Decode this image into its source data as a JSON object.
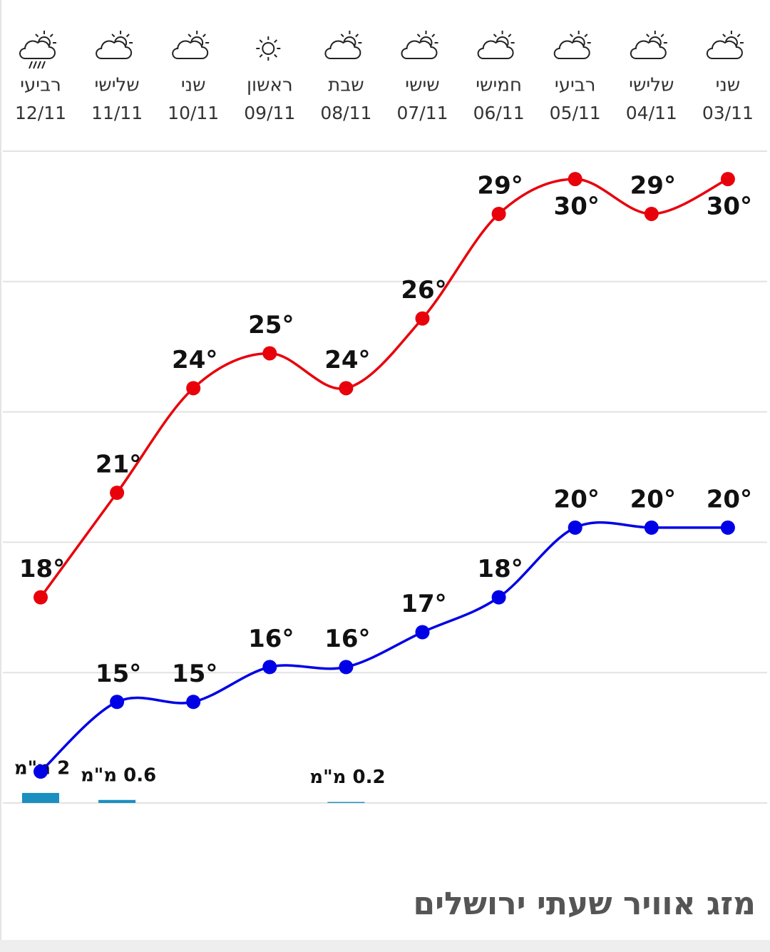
{
  "chart_data": {
    "type": "line",
    "title": "מזג אוויר שעתי ירושלים",
    "categories": [
      "12/11",
      "11/11",
      "10/11",
      "09/11",
      "08/11",
      "07/11",
      "06/11",
      "05/11",
      "04/11",
      "03/11"
    ],
    "weekdays": [
      "רביעי",
      "שלישי",
      "שני",
      "ראשון",
      "שבת",
      "שישי",
      "חמישי",
      "רביעי",
      "שלישי",
      "שני"
    ],
    "icons": [
      "rain",
      "partly-cloudy",
      "partly-cloudy",
      "sun",
      "partly-cloudy",
      "partly-cloudy",
      "partly-cloudy",
      "partly-cloudy",
      "partly-cloudy",
      "partly-cloudy"
    ],
    "series": [
      {
        "color": "#e8000b",
        "values": [
          18,
          21,
          24,
          25,
          24,
          26,
          29,
          30,
          29,
          30
        ],
        "value_labels": [
          "18°",
          "21°",
          "24°",
          "25°",
          "24°",
          "26°",
          "29°",
          "30°",
          "29°",
          "30°"
        ]
      },
      {
        "color": "#0000e6",
        "values": [
          13,
          15,
          15,
          16,
          16,
          17,
          18,
          20,
          20,
          20
        ],
        "value_labels": [
          null,
          "15°",
          "15°",
          "16°",
          "16°",
          "17°",
          "18°",
          "20°",
          "20°",
          "20°"
        ]
      }
    ],
    "precipitation": {
      "color": "#1a8fc0",
      "axis": "y2",
      "values": [
        2,
        0.6,
        null,
        null,
        0.2,
        null,
        null,
        null,
        null,
        null
      ],
      "value_labels": [
        "2 מ\"מ",
        "0.6 מ\"מ",
        null,
        null,
        "0.2 מ\"מ",
        null,
        null,
        null,
        null,
        null
      ]
    },
    "ylim": [
      12.1,
      30.8
    ],
    "y2lim": [
      0,
      130
    ],
    "grid": true
  }
}
